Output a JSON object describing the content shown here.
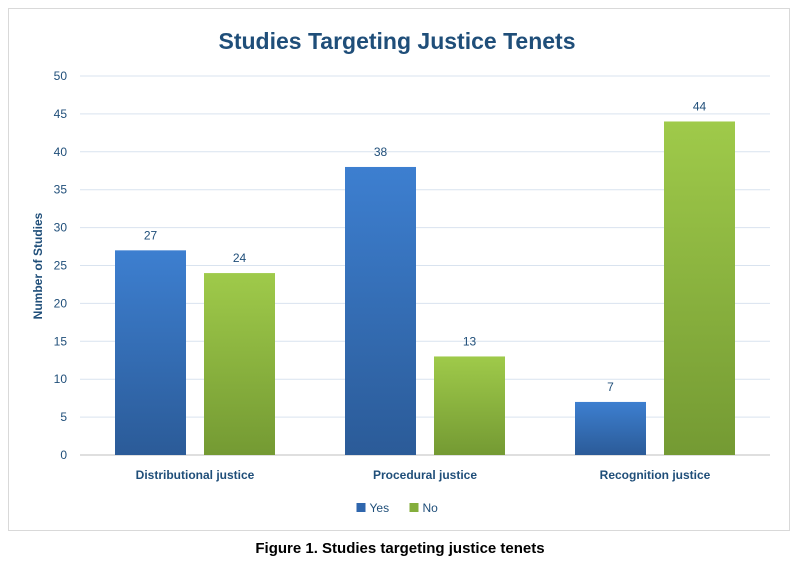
{
  "chart_data": {
    "type": "bar",
    "title": "Studies Targeting Justice Tenets",
    "xlabel": "",
    "ylabel": "Number of Studies",
    "categories": [
      "Distributional justice",
      "Procedural justice",
      "Recognition justice"
    ],
    "series": [
      {
        "name": "Yes",
        "values": [
          27,
          38,
          7
        ],
        "color": "#2f66ad"
      },
      {
        "name": "No",
        "values": [
          24,
          13,
          44
        ],
        "color": "#84ae3c"
      }
    ],
    "ylim": [
      0,
      50
    ],
    "yticks": [
      0,
      5,
      10,
      15,
      20,
      25,
      30,
      35,
      40,
      45,
      50
    ],
    "grid": true,
    "legend": "bottom"
  },
  "caption": "Figure 1. Studies targeting justice tenets"
}
